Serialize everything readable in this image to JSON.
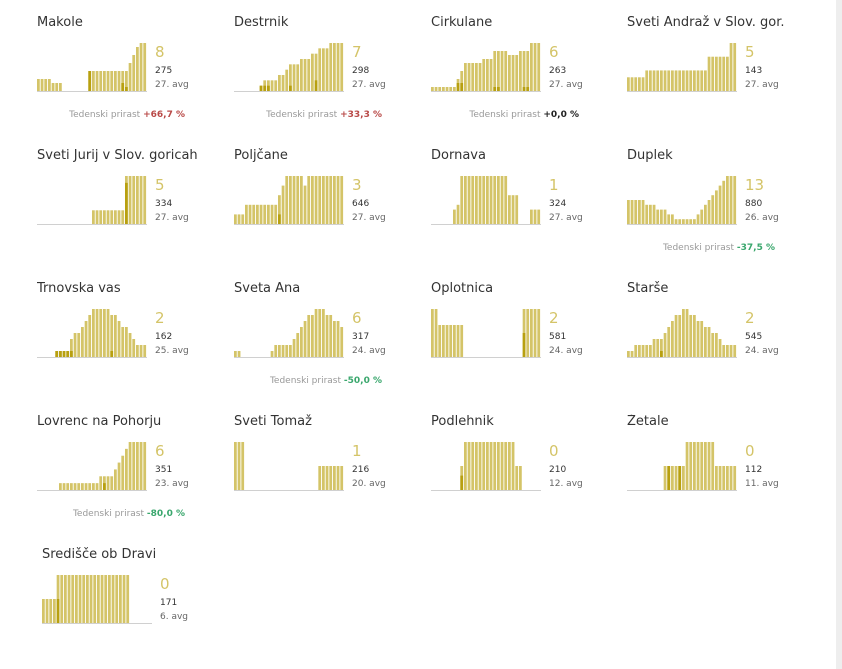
{
  "colors": {
    "bar": "#d4c468",
    "bar_dark": "#b8a010",
    "up": "#b94a48",
    "down": "#3aa76d",
    "neutral": "#222222",
    "baseline": "#d0d0d0"
  },
  "chart_data": [
    {
      "type": "bar",
      "name": "Makole",
      "new_cases": "8",
      "active": "275",
      "date": "27. avg",
      "weekly_label": "Tedenski prirast",
      "weekly_change": "+66,7 %",
      "trend": "up",
      "values": [
        3,
        3,
        3,
        3,
        2,
        2,
        2,
        0,
        0,
        0,
        0,
        0,
        0,
        0,
        5,
        5,
        5,
        5,
        5,
        5,
        5,
        5,
        5,
        5,
        5,
        7,
        9,
        11,
        12,
        12
      ],
      "highlights": [
        0,
        0,
        0,
        0,
        0,
        0,
        0,
        0,
        0,
        0,
        0,
        0,
        0,
        0,
        5,
        0,
        0,
        0,
        0,
        0,
        0,
        0,
        0,
        2,
        1,
        0,
        0,
        0,
        0,
        0
      ]
    },
    {
      "type": "bar",
      "name": "Destrnik",
      "new_cases": "7",
      "active": "298",
      "date": "27. avg",
      "weekly_label": "Tedenski prirast",
      "weekly_change": "+33,3 %",
      "trend": "up",
      "values": [
        0,
        0,
        0,
        0,
        0,
        0,
        0,
        1,
        2,
        2,
        2,
        2,
        3,
        3,
        4,
        5,
        5,
        5,
        6,
        6,
        6,
        7,
        7,
        8,
        8,
        8,
        9,
        9,
        9,
        9
      ],
      "highlights": [
        0,
        0,
        0,
        0,
        0,
        0,
        0,
        1,
        1,
        1,
        0,
        0,
        0,
        0,
        0,
        1,
        0,
        0,
        0,
        0,
        0,
        0,
        2,
        0,
        0,
        0,
        0,
        0,
        0,
        0
      ]
    },
    {
      "type": "bar",
      "name": "Cirkulane",
      "new_cases": "6",
      "active": "263",
      "date": "27. avg",
      "weekly_label": "Tedenski prirast",
      "weekly_change": "+0,0 %",
      "trend": "neutral",
      "values": [
        1,
        1,
        1,
        1,
        1,
        1,
        1,
        3,
        5,
        7,
        7,
        7,
        7,
        7,
        8,
        8,
        8,
        10,
        10,
        10,
        10,
        9,
        9,
        9,
        10,
        10,
        10,
        12,
        12,
        12
      ],
      "highlights": [
        0,
        0,
        0,
        0,
        0,
        0,
        0,
        2,
        2,
        0,
        0,
        0,
        0,
        0,
        0,
        0,
        0,
        1,
        1,
        0,
        0,
        0,
        0,
        0,
        0,
        1,
        1,
        0,
        0,
        0
      ]
    },
    {
      "type": "bar",
      "name": "Sveti Andraž v Slov. gor.",
      "new_cases": "5",
      "active": "143",
      "date": "27. avg",
      "weekly_label": "",
      "weekly_change": "",
      "trend": "",
      "values": [
        2,
        2,
        2,
        2,
        2,
        3,
        3,
        3,
        3,
        3,
        3,
        3,
        3,
        3,
        3,
        3,
        3,
        3,
        3,
        3,
        3,
        3,
        5,
        5,
        5,
        5,
        5,
        5,
        7,
        7
      ],
      "highlights": [
        0,
        0,
        0,
        0,
        0,
        0,
        0,
        0,
        0,
        0,
        0,
        0,
        0,
        0,
        0,
        0,
        0,
        0,
        0,
        0,
        0,
        0,
        0,
        0,
        0,
        0,
        0,
        0,
        0,
        0
      ]
    },
    {
      "type": "bar",
      "name": "Sveti Jurij v Slov. goricah",
      "new_cases": "5",
      "active": "334",
      "date": "27. avg",
      "weekly_label": "",
      "weekly_change": "",
      "trend": "",
      "values": [
        0,
        0,
        0,
        0,
        0,
        0,
        0,
        0,
        0,
        0,
        0,
        0,
        0,
        0,
        0,
        2,
        2,
        2,
        2,
        2,
        2,
        2,
        2,
        2,
        7,
        7,
        7,
        7,
        7,
        7
      ],
      "highlights": [
        0,
        0,
        0,
        0,
        0,
        0,
        0,
        0,
        0,
        0,
        0,
        0,
        0,
        0,
        0,
        0,
        0,
        0,
        0,
        0,
        0,
        0,
        0,
        0,
        6,
        0,
        0,
        0,
        0,
        0
      ]
    },
    {
      "type": "bar",
      "name": "Poljčane",
      "new_cases": "3",
      "active": "646",
      "date": "27. avg",
      "weekly_label": "",
      "weekly_change": "",
      "trend": "",
      "values": [
        2,
        2,
        2,
        4,
        4,
        4,
        4,
        4,
        4,
        4,
        4,
        4,
        6,
        8,
        10,
        10,
        10,
        10,
        10,
        8,
        10,
        10,
        10,
        10,
        10,
        10,
        10,
        10,
        10,
        10
      ],
      "highlights": [
        0,
        0,
        0,
        0,
        0,
        0,
        0,
        0,
        0,
        0,
        0,
        0,
        2,
        0,
        0,
        0,
        0,
        0,
        0,
        0,
        0,
        0,
        0,
        0,
        0,
        0,
        0,
        0,
        0,
        0
      ]
    },
    {
      "type": "bar",
      "name": "Dornava",
      "new_cases": "1",
      "active": "324",
      "date": "27. avg",
      "weekly_label": "",
      "weekly_change": "",
      "trend": "",
      "values": [
        0,
        0,
        0,
        0,
        0,
        0,
        3,
        4,
        10,
        10,
        10,
        10,
        10,
        10,
        10,
        10,
        10,
        10,
        10,
        10,
        10,
        6,
        6,
        6,
        0,
        0,
        0,
        3,
        3,
        3
      ],
      "highlights": [
        0,
        0,
        0,
        0,
        0,
        0,
        0,
        0,
        0,
        0,
        0,
        0,
        0,
        0,
        0,
        0,
        0,
        0,
        0,
        0,
        0,
        0,
        0,
        0,
        0,
        0,
        0,
        0,
        0,
        0
      ]
    },
    {
      "type": "bar",
      "name": "Duplek",
      "new_cases": "13",
      "active": "880",
      "date": "26. avg",
      "weekly_label": "Tedenski prirast",
      "weekly_change": "-37,5 %",
      "trend": "down",
      "values": [
        5,
        5,
        5,
        5,
        5,
        4,
        4,
        4,
        3,
        3,
        3,
        2,
        2,
        1,
        1,
        1,
        1,
        1,
        1,
        2,
        3,
        4,
        5,
        6,
        7,
        8,
        9,
        10,
        10,
        10
      ],
      "highlights": [
        0,
        0,
        0,
        0,
        0,
        0,
        0,
        0,
        0,
        0,
        0,
        0,
        0,
        0,
        0,
        0,
        0,
        0,
        0,
        0,
        0,
        0,
        0,
        0,
        0,
        0,
        0,
        0,
        0,
        0
      ]
    },
    {
      "type": "bar",
      "name": "Trnovska vas",
      "new_cases": "2",
      "active": "162",
      "date": "25. avg",
      "weekly_label": "",
      "weekly_change": "",
      "trend": "",
      "values": [
        0,
        0,
        0,
        0,
        0,
        1,
        1,
        1,
        1,
        3,
        4,
        4,
        5,
        6,
        7,
        8,
        8,
        8,
        8,
        8,
        7,
        7,
        6,
        5,
        5,
        4,
        3,
        2,
        2,
        2
      ],
      "highlights": [
        0,
        0,
        0,
        0,
        0,
        1,
        1,
        1,
        1,
        1,
        0,
        0,
        0,
        0,
        0,
        0,
        0,
        0,
        0,
        0,
        1,
        0,
        0,
        0,
        0,
        0,
        0,
        0,
        0,
        0
      ]
    },
    {
      "type": "bar",
      "name": "Sveta Ana",
      "new_cases": "6",
      "active": "317",
      "date": "24. avg",
      "weekly_label": "Tedenski prirast",
      "weekly_change": "-50,0 %",
      "trend": "down",
      "values": [
        1,
        1,
        0,
        0,
        0,
        0,
        0,
        0,
        0,
        0,
        1,
        2,
        2,
        2,
        2,
        2,
        3,
        4,
        5,
        6,
        7,
        7,
        8,
        8,
        8,
        7,
        7,
        6,
        6,
        5
      ],
      "highlights": [
        0,
        0,
        0,
        0,
        0,
        0,
        0,
        0,
        0,
        0,
        0,
        0,
        0,
        0,
        0,
        0,
        0,
        0,
        0,
        0,
        0,
        0,
        0,
        0,
        0,
        0,
        0,
        0,
        0,
        0
      ]
    },
    {
      "type": "bar",
      "name": "Oplotnica",
      "new_cases": "2",
      "active": "581",
      "date": "24. avg",
      "weekly_label": "",
      "weekly_change": "",
      "trend": "",
      "values": [
        6,
        6,
        4,
        4,
        4,
        4,
        4,
        4,
        4,
        0,
        0,
        0,
        0,
        0,
        0,
        0,
        0,
        0,
        0,
        0,
        0,
        0,
        0,
        0,
        0,
        6,
        6,
        6,
        6,
        6
      ],
      "highlights": [
        0,
        0,
        0,
        0,
        0,
        0,
        0,
        0,
        0,
        0,
        0,
        0,
        0,
        0,
        0,
        0,
        0,
        0,
        0,
        0,
        0,
        0,
        0,
        0,
        0,
        3,
        0,
        0,
        0,
        0
      ]
    },
    {
      "type": "bar",
      "name": "Starše",
      "new_cases": "2",
      "active": "545",
      "date": "24. avg",
      "weekly_label": "",
      "weekly_change": "",
      "trend": "",
      "values": [
        1,
        1,
        2,
        2,
        2,
        2,
        2,
        3,
        3,
        3,
        4,
        5,
        6,
        7,
        7,
        8,
        8,
        7,
        7,
        6,
        6,
        5,
        5,
        4,
        4,
        3,
        2,
        2,
        2,
        2
      ],
      "highlights": [
        0,
        0,
        0,
        0,
        0,
        0,
        0,
        0,
        0,
        1,
        0,
        0,
        0,
        0,
        0,
        0,
        0,
        0,
        0,
        0,
        0,
        0,
        0,
        0,
        0,
        0,
        0,
        0,
        0,
        0
      ]
    },
    {
      "type": "bar",
      "name": "Lovrenc na Pohorju",
      "new_cases": "6",
      "active": "351",
      "date": "23. avg",
      "weekly_label": "Tedenski prirast",
      "weekly_change": "-80,0 %",
      "trend": "down",
      "values": [
        0,
        0,
        0,
        0,
        0,
        0,
        1,
        1,
        1,
        1,
        1,
        1,
        1,
        1,
        1,
        1,
        1,
        2,
        2,
        2,
        2,
        3,
        4,
        5,
        6,
        7,
        7,
        7,
        7,
        7
      ],
      "highlights": [
        0,
        0,
        0,
        0,
        0,
        0,
        0,
        0,
        0,
        0,
        0,
        0,
        0,
        0,
        0,
        0,
        0,
        0,
        1,
        0,
        0,
        0,
        0,
        0,
        0,
        0,
        0,
        0,
        0,
        0
      ]
    },
    {
      "type": "bar",
      "name": "Sveti Tomaž",
      "new_cases": "1",
      "active": "216",
      "date": "20. avg",
      "weekly_label": "",
      "weekly_change": "",
      "trend": "",
      "values": [
        10,
        10,
        10,
        0,
        0,
        0,
        0,
        0,
        0,
        0,
        0,
        0,
        0,
        0,
        0,
        0,
        0,
        0,
        0,
        0,
        0,
        0,
        0,
        5,
        5,
        5,
        5,
        5,
        5,
        5
      ],
      "highlights": [
        0,
        0,
        0,
        0,
        0,
        0,
        0,
        0,
        0,
        0,
        0,
        0,
        0,
        0,
        0,
        0,
        0,
        0,
        0,
        0,
        0,
        0,
        0,
        0,
        0,
        0,
        0,
        0,
        0,
        0
      ]
    },
    {
      "type": "bar",
      "name": "Podlehnik",
      "new_cases": "0",
      "active": "210",
      "date": "12. avg",
      "weekly_label": "",
      "weekly_change": "",
      "trend": "",
      "values": [
        0,
        0,
        0,
        0,
        0,
        0,
        0,
        0,
        5,
        10,
        10,
        10,
        10,
        10,
        10,
        10,
        10,
        10,
        10,
        10,
        10,
        10,
        10,
        5,
        5,
        0,
        0,
        0,
        0,
        0
      ],
      "highlights": [
        0,
        0,
        0,
        0,
        0,
        0,
        0,
        0,
        3,
        0,
        0,
        0,
        0,
        0,
        0,
        0,
        0,
        0,
        0,
        0,
        0,
        0,
        0,
        0,
        0,
        0,
        0,
        0,
        0,
        0
      ]
    },
    {
      "type": "bar",
      "name": "Žetale",
      "new_cases": "0",
      "active": "112",
      "date": "11. avg",
      "weekly_label": "",
      "weekly_change": "",
      "trend": "",
      "values": [
        0,
        0,
        0,
        0,
        0,
        0,
        0,
        0,
        0,
        0,
        1,
        1,
        1,
        1,
        1,
        1,
        2,
        2,
        2,
        2,
        2,
        2,
        2,
        2,
        1,
        1,
        1,
        1,
        1,
        1
      ],
      "highlights": [
        0,
        0,
        0,
        0,
        0,
        0,
        0,
        0,
        0,
        0,
        0,
        1,
        0,
        0,
        1,
        0,
        0,
        0,
        0,
        0,
        0,
        0,
        0,
        0,
        0,
        0,
        0,
        0,
        0,
        0
      ]
    },
    {
      "type": "bar",
      "name": "Središče ob Dravi",
      "new_cases": "0",
      "active": "171",
      "date": "6. avg",
      "weekly_label": "",
      "weekly_change": "",
      "trend": "",
      "values": [
        1,
        1,
        1,
        1,
        2,
        2,
        2,
        2,
        2,
        2,
        2,
        2,
        2,
        2,
        2,
        2,
        2,
        2,
        2,
        2,
        2,
        2,
        2,
        2,
        0,
        0,
        0,
        0,
        0,
        0
      ],
      "highlights": [
        0,
        0,
        0,
        0,
        1,
        0,
        0,
        0,
        0,
        0,
        0,
        0,
        0,
        0,
        0,
        0,
        0,
        0,
        0,
        0,
        0,
        0,
        0,
        0,
        0,
        0,
        0,
        0,
        0,
        0
      ]
    }
  ]
}
